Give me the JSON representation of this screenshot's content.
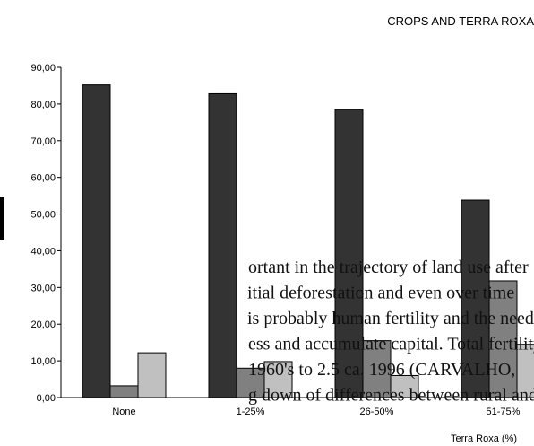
{
  "chart_data": {
    "type": "bar",
    "title": "CROPS AND TERRA ROXA",
    "x_label": "Terra Roxa (%)",
    "categories": [
      "None",
      "1-25%",
      "26-50%",
      "51-75%"
    ],
    "series": [
      {
        "color": "#333333",
        "values": [
          85.2,
          82.8,
          78.5,
          53.8
        ]
      },
      {
        "color": "#808080",
        "values": [
          3.2,
          8.0,
          15.5,
          31.8
        ]
      },
      {
        "color": "#c0c0c0",
        "values": [
          12.2,
          9.8,
          6.0,
          14.5
        ]
      }
    ],
    "ylim": [
      0,
      90
    ],
    "yticks": [
      {
        "value": 0,
        "label": "0,00"
      },
      {
        "value": 10,
        "label": "10,00"
      },
      {
        "value": 20,
        "label": "20,00"
      },
      {
        "value": 30,
        "label": "30,00"
      },
      {
        "value": 40,
        "label": "40,00"
      },
      {
        "value": 50,
        "label": "50,00"
      },
      {
        "value": 60,
        "label": "60,00"
      },
      {
        "value": 70,
        "label": "70,00"
      },
      {
        "value": 80,
        "label": "80,00"
      },
      {
        "value": 90,
        "label": "90,00"
      }
    ]
  },
  "text_lines": [
    "ortant in the trajectory of land use after",
    "itial deforestation and even over time",
    "is probably human fertility and the need",
    "ess and accumulate capital. Total fertility",
    "1960's to 2.5 ca. 1996 (CARVALHO,",
    "g down of differences between rural and"
  ]
}
